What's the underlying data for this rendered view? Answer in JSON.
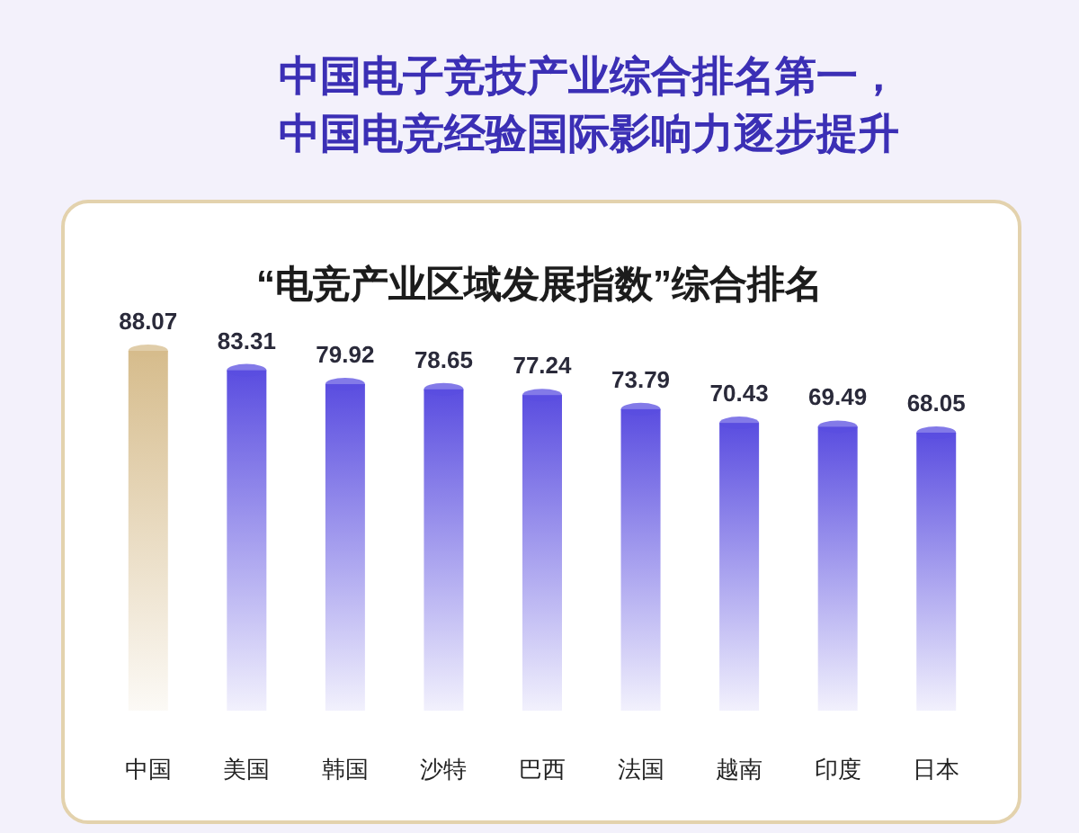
{
  "chart_data": {
    "type": "bar",
    "title": "中国电子竞技产业综合排名第一，中国电竞经验国际影响力逐步提升",
    "subtitle": "“电竞产业区域发展指数”综合排名",
    "categories": [
      "中国",
      "美国",
      "韩国",
      "沙特",
      "巴西",
      "法国",
      "越南",
      "印度",
      "日本"
    ],
    "values": [
      88.07,
      83.31,
      79.92,
      78.65,
      77.24,
      73.79,
      70.43,
      69.49,
      68.05
    ],
    "colors": [
      "#d6bc8c",
      "#5a4de0",
      "#5a4de0",
      "#5a4de0",
      "#5a4de0",
      "#5a4de0",
      "#5a4de0",
      "#5a4de0",
      "#5a4de0"
    ],
    "data_labels": true
  }
}
